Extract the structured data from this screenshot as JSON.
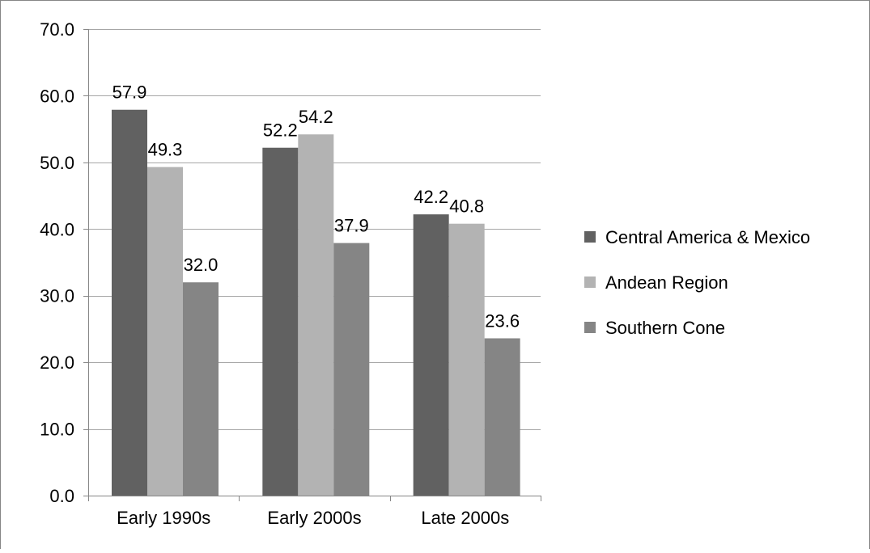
{
  "chart_data": {
    "type": "bar",
    "categories": [
      "Early 1990s",
      "Early 2000s",
      "Late 2000s"
    ],
    "series": [
      {
        "name": "Central America & Mexico",
        "values": [
          57.9,
          52.2,
          42.2
        ],
        "color": "#616161"
      },
      {
        "name": "Andean Region",
        "values": [
          49.3,
          54.2,
          40.8
        ],
        "color": "#b3b3b3"
      },
      {
        "name": "Southern Cone",
        "values": [
          32.0,
          37.9,
          23.6
        ],
        "color": "#858585"
      }
    ],
    "title": "",
    "xlabel": "",
    "ylabel": "",
    "ylim": [
      0,
      70
    ],
    "yticks": [
      "0.0",
      "10.0",
      "20.0",
      "30.0",
      "40.0",
      "50.0",
      "60.0",
      "70.0"
    ],
    "data_labels": [
      [
        "57.9",
        "52.2",
        "42.2"
      ],
      [
        "49.3",
        "54.2",
        "40.8"
      ],
      [
        "32.0",
        "37.9",
        "23.6"
      ]
    ],
    "grid": true,
    "legend_position": "right",
    "gridline_color": "#a6a6a6",
    "axis_color": "#868686"
  }
}
